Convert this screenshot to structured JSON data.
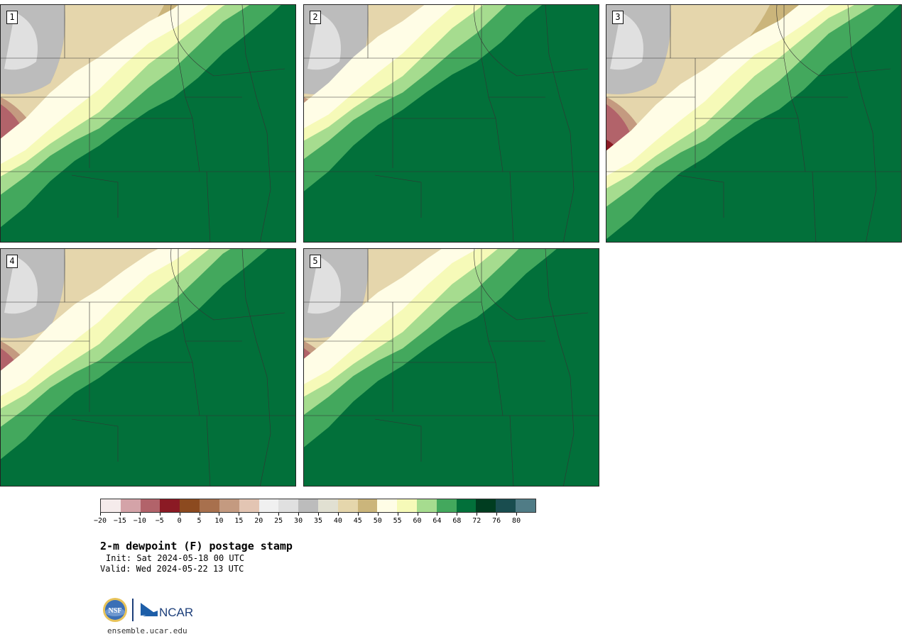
{
  "title": "2-m dewpoint (F) postage stamp",
  "init_line": "Init: Sat 2024-05-18 00 UTC",
  "valid_line": "Valid: Wed 2024-05-22 13 UTC",
  "url": "ensemble.ucar.edu",
  "logos": {
    "nsf": "NSF",
    "ncar": "NCAR"
  },
  "panels": [
    {
      "label": "1",
      "front_shift": 0
    },
    {
      "label": "2",
      "front_shift": 0.15
    },
    {
      "label": "3",
      "front_shift": -0.05
    },
    {
      "label": "4",
      "front_shift": 0.05
    },
    {
      "label": "5",
      "front_shift": 0.1
    }
  ],
  "colorbar": {
    "colors": [
      "#f5ebeb",
      "#d4a3a8",
      "#b2636a",
      "#8b1a24",
      "#8c4a1f",
      "#a8704d",
      "#c49a80",
      "#e3c5b3",
      "#f0f0f0",
      "#e0e0e0",
      "#bcbcbc",
      "#e1e0d2",
      "#e5d6ac",
      "#cbb57b",
      "#fffde6",
      "#f6fab8",
      "#a6dc8f",
      "#43a85d",
      "#02703a",
      "#003d20",
      "#194d4f",
      "#507c86"
    ],
    "tick_labels": [
      "−20",
      "−15",
      "−10",
      "−5",
      "0",
      "5",
      "10",
      "15",
      "20",
      "25",
      "30",
      "35",
      "40",
      "45",
      "50",
      "55",
      "60",
      "64",
      "68",
      "72",
      "76",
      "80"
    ]
  }
}
